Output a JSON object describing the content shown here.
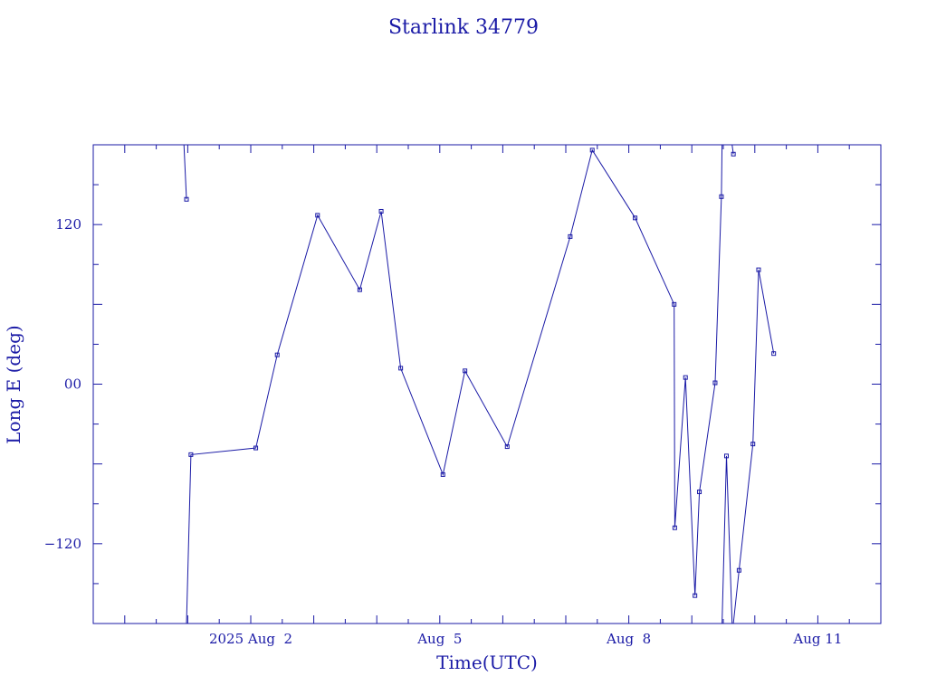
{
  "chart_data": {
    "type": "line",
    "title": "Starlink 34779",
    "xlabel": "Time(UTC)",
    "ylabel": "Long E (deg)",
    "x_unit": "days since 2025-08-02 00:00 UTC",
    "xlim": [
      -2.5,
      10
    ],
    "ylim": [
      -180,
      180
    ],
    "x_ticks": [
      {
        "value": 0,
        "label": "2025 Aug  2"
      },
      {
        "value": 3,
        "label": "Aug  5"
      },
      {
        "value": 6,
        "label": "Aug  8"
      },
      {
        "value": 9,
        "label": "Aug 11"
      }
    ],
    "y_ticks": [
      {
        "value": 120,
        "label": "120"
      },
      {
        "value": 0,
        "label": "00"
      },
      {
        "value": -120,
        "label": "−120"
      }
    ],
    "grid": false,
    "color": "#1a1aa6",
    "segments": [
      [
        [
          -1.06,
          180
        ],
        [
          -1.02,
          139
        ]
      ],
      [
        [
          -1.02,
          -180
        ],
        [
          -0.95,
          -53
        ],
        [
          0.08,
          -48
        ],
        [
          0.42,
          22
        ],
        [
          1.06,
          127
        ],
        [
          1.73,
          71
        ],
        [
          2.07,
          130
        ],
        [
          2.38,
          12
        ],
        [
          3.05,
          -68
        ],
        [
          3.4,
          10
        ],
        [
          4.07,
          -47
        ],
        [
          5.07,
          111
        ],
        [
          5.42,
          176
        ],
        [
          6.1,
          125
        ],
        [
          6.72,
          60
        ],
        [
          6.73,
          -108
        ],
        [
          6.9,
          5
        ],
        [
          7.05,
          -159
        ],
        [
          7.12,
          -81
        ],
        [
          7.37,
          1
        ],
        [
          7.47,
          141
        ],
        [
          7.48,
          180
        ]
      ],
      [
        [
          7.48,
          -180
        ],
        [
          7.55,
          -54
        ],
        [
          7.64,
          -180
        ]
      ],
      [
        [
          7.64,
          180
        ],
        [
          7.66,
          173
        ]
      ],
      [
        [
          7.66,
          -180
        ],
        [
          7.75,
          -140
        ],
        [
          7.97,
          -45
        ],
        [
          8.06,
          86
        ],
        [
          8.3,
          23
        ]
      ]
    ]
  }
}
